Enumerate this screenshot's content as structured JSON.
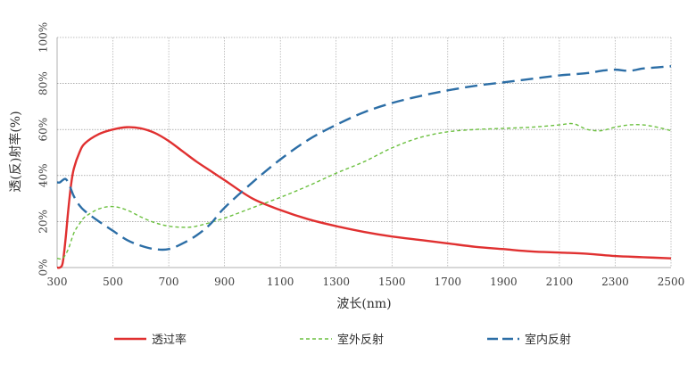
{
  "chart_data": {
    "type": "line",
    "xlabel": "波长(nm)",
    "ylabel": "透(反)射率(%)",
    "xlim": [
      300,
      2500
    ],
    "ylim": [
      0,
      100
    ],
    "x_ticks": [
      "300",
      "500",
      "700",
      "900",
      "1100",
      "1300",
      "1500",
      "1700",
      "1900",
      "2100",
      "2300",
      "2500"
    ],
    "y_ticks": [
      "0%",
      "20%",
      "40%",
      "60%",
      "80%",
      "100%"
    ],
    "grid": true,
    "legend_position": "bottom",
    "series": [
      {
        "name": "透过率",
        "color": "#e03030",
        "style": "solid",
        "x": [
          300,
          310,
          320,
          330,
          340,
          350,
          360,
          380,
          400,
          450,
          500,
          550,
          600,
          650,
          700,
          750,
          800,
          850,
          900,
          1000,
          1100,
          1200,
          1300,
          1400,
          1500,
          1600,
          1700,
          1800,
          1900,
          2000,
          2100,
          2200,
          2300,
          2400,
          2500
        ],
        "y": [
          0,
          0,
          2,
          12,
          25,
          36,
          43,
          50,
          54,
          58,
          60,
          61,
          60.5,
          58.5,
          55,
          50.5,
          46,
          42,
          38,
          30,
          25,
          21,
          18,
          15.5,
          13.5,
          12,
          10.5,
          9,
          8,
          7,
          6.5,
          6,
          5,
          4.5,
          4
        ]
      },
      {
        "name": "室外反射",
        "color": "#6cc040",
        "style": "dashed",
        "x": [
          300,
          320,
          340,
          360,
          380,
          400,
          450,
          500,
          550,
          600,
          650,
          700,
          750,
          800,
          900,
          1000,
          1100,
          1200,
          1300,
          1400,
          1500,
          1600,
          1700,
          1800,
          1900,
          2000,
          2100,
          2150,
          2200,
          2250,
          2300,
          2350,
          2400,
          2450,
          2500
        ],
        "y": [
          4,
          4,
          8,
          15,
          19,
          22,
          25.5,
          26.5,
          25,
          22,
          19.5,
          18,
          17.5,
          18,
          21.5,
          26,
          30.5,
          35.5,
          41,
          46,
          52,
          56.5,
          59,
          60,
          60.5,
          61,
          62,
          62.5,
          60,
          59.5,
          61,
          62,
          62,
          61,
          59.5
        ]
      },
      {
        "name": "室内反射",
        "color": "#2c6ea6",
        "style": "dashed",
        "x": [
          300,
          310,
          320,
          330,
          340,
          350,
          360,
          380,
          400,
          450,
          500,
          550,
          600,
          650,
          700,
          750,
          800,
          850,
          900,
          1000,
          1100,
          1200,
          1300,
          1400,
          1500,
          1600,
          1700,
          1800,
          1900,
          2000,
          2100,
          2200,
          2250,
          2300,
          2350,
          2400,
          2450,
          2500
        ],
        "y": [
          37,
          37,
          38,
          38.5,
          37,
          34,
          31,
          27,
          24.5,
          20,
          16,
          12,
          9.5,
          8,
          8,
          10.5,
          14,
          19,
          26,
          37,
          47,
          55.5,
          62,
          67.5,
          71.5,
          74.5,
          77,
          79,
          80.5,
          82,
          83.5,
          84.5,
          85.5,
          86,
          85.5,
          86.5,
          87,
          87.5
        ]
      }
    ]
  }
}
